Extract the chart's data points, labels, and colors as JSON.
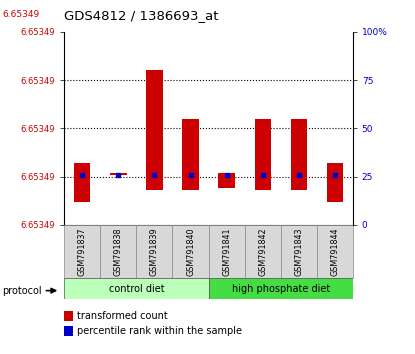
{
  "title": "GDS4812 / 1386693_at",
  "samples": [
    "GSM791837",
    "GSM791838",
    "GSM791839",
    "GSM791840",
    "GSM791841",
    "GSM791842",
    "GSM791843",
    "GSM791844"
  ],
  "bar_tops_pct": [
    32,
    27,
    80,
    55,
    27,
    55,
    55,
    32
  ],
  "bar_bots_pct": [
    12,
    26,
    18,
    18,
    19,
    18,
    18,
    12
  ],
  "blue_pct": [
    26,
    26,
    26,
    26,
    26,
    26,
    26,
    26
  ],
  "dotted_lines": [
    25,
    50,
    75
  ],
  "left_ytick_pcts": [
    0,
    25,
    50,
    75,
    100
  ],
  "left_ytick_labels": [
    "6.65349",
    "6.65349",
    "6.65349",
    "6.65349",
    "6.65349"
  ],
  "right_ytick_labels": [
    "0",
    "25",
    "50",
    "75",
    "100%"
  ],
  "title_red_label": "6.65349",
  "red_bar_color": "#CC0000",
  "blue_dot_color": "#0000CC",
  "label_color_red": "#CC0000",
  "label_color_blue": "#0000CC",
  "group1_label": "control diet",
  "group2_label": "high phosphate diet",
  "group1_color": "#bbffbb",
  "group2_color": "#44dd44",
  "legend1": "transformed count",
  "legend2": "percentile rank within the sample",
  "protocol_label": "protocol",
  "bar_width": 0.45,
  "ylim": [
    0,
    100
  ],
  "n_groups": [
    4,
    4
  ]
}
